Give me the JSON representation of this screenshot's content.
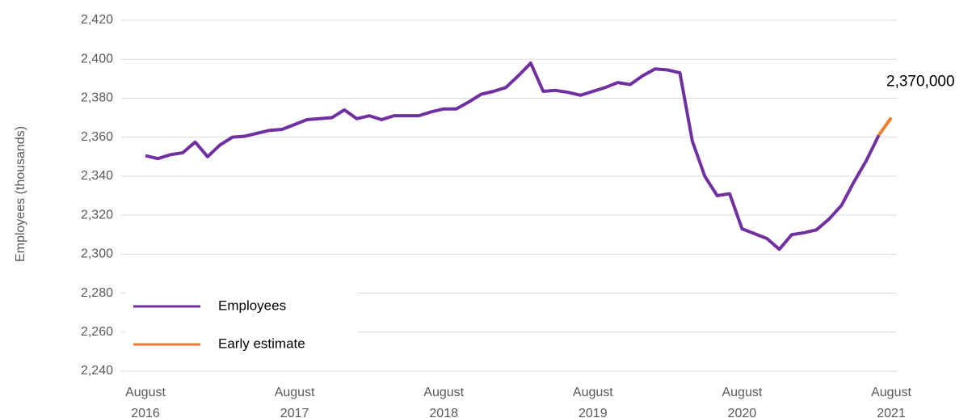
{
  "chart_data": {
    "type": "line",
    "y_label": "Employees (thousands)",
    "categories": [
      "August 2016",
      null,
      null,
      null,
      null,
      null,
      null,
      null,
      null,
      null,
      null,
      null,
      "August 2017",
      null,
      null,
      null,
      null,
      null,
      null,
      null,
      null,
      null,
      null,
      null,
      "August 2018",
      null,
      null,
      null,
      null,
      null,
      null,
      null,
      null,
      null,
      null,
      null,
      "August 2019",
      null,
      null,
      null,
      null,
      null,
      null,
      null,
      null,
      null,
      null,
      null,
      "August 2020",
      null,
      null,
      null,
      null,
      null,
      null,
      null,
      null,
      null,
      null,
      null,
      "August 2021"
    ],
    "series": [
      {
        "name": "Employees",
        "color": "#7030a0",
        "values": [
          2350.5,
          2349,
          2351,
          2352,
          2357.5,
          2350,
          2356,
          2360,
          2360.5,
          2362,
          2363.5,
          2364,
          2366.5,
          2369,
          2369.5,
          2370,
          2374,
          2369.5,
          2371,
          2369,
          2371,
          2371,
          2371,
          2373,
          2374.5,
          2374.5,
          2378,
          2382,
          2383.5,
          2385.5,
          2391.5,
          2398,
          2383.5,
          2384,
          2383,
          2381.5,
          2383.5,
          2385.5,
          2388,
          2387,
          2391.5,
          2395,
          2394.5,
          2393,
          2358,
          2340,
          2330,
          2331,
          2313,
          2310.5,
          2308,
          2302.5,
          2310,
          2311,
          2312.5,
          2318,
          2325,
          2337,
          2348,
          2361,
          null
        ]
      },
      {
        "name": "Early estimate",
        "color": "#ed7d31",
        "values": [
          null,
          null,
          null,
          null,
          null,
          null,
          null,
          null,
          null,
          null,
          null,
          null,
          null,
          null,
          null,
          null,
          null,
          null,
          null,
          null,
          null,
          null,
          null,
          null,
          null,
          null,
          null,
          null,
          null,
          null,
          null,
          null,
          null,
          null,
          null,
          null,
          null,
          null,
          null,
          null,
          null,
          null,
          null,
          null,
          null,
          null,
          null,
          null,
          null,
          null,
          null,
          null,
          null,
          null,
          null,
          null,
          null,
          null,
          null,
          2361,
          2370
        ],
        "value_labels": [
          null,
          null,
          null,
          null,
          null,
          null,
          null,
          null,
          null,
          null,
          null,
          null,
          null,
          null,
          null,
          null,
          null,
          null,
          null,
          null,
          null,
          null,
          null,
          null,
          null,
          null,
          null,
          null,
          null,
          null,
          null,
          null,
          null,
          null,
          null,
          null,
          null,
          null,
          null,
          null,
          null,
          null,
          null,
          null,
          null,
          null,
          null,
          null,
          null,
          null,
          null,
          null,
          null,
          null,
          null,
          null,
          null,
          null,
          null,
          null,
          "2,370,000"
        ]
      }
    ],
    "ylim": [
      2240,
      2420
    ],
    "yticks": [
      {
        "value": 2240,
        "label": "2,240"
      },
      {
        "value": 2260,
        "label": "2,260"
      },
      {
        "value": 2280,
        "label": "2,280"
      },
      {
        "value": 2300,
        "label": "2,300"
      },
      {
        "value": 2320,
        "label": "2,320"
      },
      {
        "value": 2340,
        "label": "2,340"
      },
      {
        "value": 2360,
        "label": "2,360"
      },
      {
        "value": 2380,
        "label": "2,380"
      },
      {
        "value": 2400,
        "label": "2,400"
      },
      {
        "value": 2420,
        "label": "2,420"
      }
    ],
    "grid": true,
    "legend": "lower left"
  }
}
